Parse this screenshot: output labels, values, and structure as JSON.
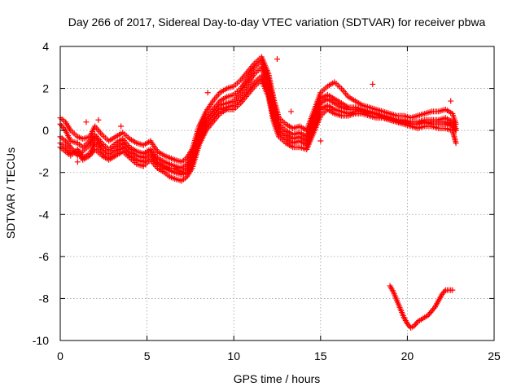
{
  "chart_data": {
    "type": "scatter",
    "title": "Day 266 of 2017, Sidereal Day-to-day VTEC variation (SDTVAR) for receiver pbwa",
    "xlabel": "GPS time / hours",
    "ylabel": "SDTVAR / TECUs",
    "xlim": [
      0,
      25
    ],
    "ylim": [
      -10,
      4
    ],
    "xticks": [
      0,
      5,
      10,
      15,
      20,
      25
    ],
    "xtick_labels": [
      "0",
      "5",
      "10",
      "15",
      "20",
      "25"
    ],
    "yticks": [
      -10,
      -8,
      -6,
      -4,
      -2,
      0,
      2,
      4
    ],
    "ytick_labels": [
      "-10",
      "-8",
      "-6",
      "-4",
      "-2",
      "0",
      "2",
      "4"
    ],
    "grid": true,
    "marker": "plus",
    "series": [
      {
        "name": "pbwa",
        "color": "#ff0000",
        "tracks": [
          {
            "x": [
              0,
              0.3,
              0.6,
              1.0,
              1.3,
              1.7,
              2.0,
              2.4,
              2.8,
              3.2,
              3.6,
              4.0,
              4.4,
              4.8,
              5.2,
              5.6,
              6.0,
              6.3,
              6.6,
              7.0,
              7.3,
              7.6,
              8.0,
              8.4,
              8.8,
              9.2,
              9.6,
              10.0,
              10.4,
              10.8,
              11.2,
              11.6,
              12.0,
              12.3,
              12.6,
              13.0,
              13.4,
              13.8,
              14.2,
              14.6,
              15.0,
              15.4,
              15.8,
              16.2,
              16.6,
              17.0,
              17.4,
              17.8,
              18.2,
              18.6,
              19.0,
              19.4,
              19.8,
              20.2,
              20.6,
              21.0,
              21.4,
              21.8,
              22.2,
              22.6,
              22.8
            ],
            "y": [
              -0.8,
              -1.0,
              -1.2,
              -0.9,
              -1.3,
              -1.1,
              -0.6,
              -1.0,
              -1.3,
              -1.0,
              -0.8,
              -1.2,
              -1.4,
              -1.5,
              -1.2,
              -1.6,
              -1.8,
              -1.9,
              -2.0,
              -2.1,
              -2.0,
              -1.6,
              -0.5,
              0.2,
              0.6,
              1.0,
              1.1,
              1.2,
              1.5,
              1.9,
              2.3,
              2.6,
              1.8,
              0.6,
              -0.1,
              -0.4,
              -0.6,
              -0.5,
              -0.7,
              0.2,
              1.0,
              1.2,
              1.0,
              0.9,
              0.8,
              0.9,
              0.9,
              0.8,
              0.8,
              0.7,
              0.6,
              0.5,
              0.4,
              0.3,
              0.3,
              0.4,
              0.3,
              0.3,
              0.3,
              0.2,
              0.0
            ]
          },
          {
            "x": [
              0,
              0.3,
              0.6,
              1.0,
              1.3,
              1.7,
              2.0,
              2.4,
              2.8,
              3.2,
              3.6,
              4.0,
              4.4,
              4.8,
              5.2,
              5.6,
              6.0,
              6.3,
              6.6,
              7.0,
              7.3,
              7.6,
              8.0,
              8.4,
              8.8,
              9.2,
              9.6,
              10.0,
              10.4,
              10.8,
              11.2,
              11.6,
              12.0,
              12.3,
              12.6,
              13.0,
              13.4,
              13.8,
              14.2,
              14.6,
              15.0,
              15.4,
              15.8,
              16.2,
              16.6,
              17.0,
              17.4,
              17.8,
              18.2,
              18.6,
              19.0,
              19.4,
              19.8,
              20.2,
              20.6,
              21.0,
              21.4,
              21.8,
              22.2,
              22.6,
              22.8
            ],
            "y": [
              0.3,
              0.0,
              -0.5,
              -0.6,
              -0.8,
              -0.5,
              -0.2,
              -0.6,
              -0.9,
              -0.6,
              -0.4,
              -0.8,
              -1.0,
              -1.1,
              -0.9,
              -1.3,
              -1.5,
              -1.6,
              -1.7,
              -1.8,
              -1.6,
              -1.2,
              -0.1,
              0.6,
              1.0,
              1.4,
              1.6,
              1.7,
              2.0,
              2.5,
              3.0,
              3.3,
              2.4,
              1.2,
              0.3,
              0.0,
              -0.2,
              -0.1,
              -0.3,
              0.6,
              1.5,
              1.7,
              1.5,
              1.3,
              1.1,
              1.1,
              1.0,
              0.9,
              0.8,
              0.7,
              0.6,
              0.5,
              0.5,
              0.4,
              0.4,
              0.5,
              0.5,
              0.5,
              0.6,
              0.4,
              0.1
            ]
          },
          {
            "x": [
              0,
              0.3,
              0.6,
              1.0,
              1.3,
              1.7,
              2.0,
              2.4,
              2.8,
              3.2,
              3.6,
              4.0,
              4.4,
              4.8,
              5.2,
              5.6,
              6.0,
              6.3,
              6.6,
              7.0,
              7.3,
              7.6,
              8.0,
              8.4,
              8.8,
              9.2,
              9.6,
              10.0,
              10.4,
              10.8,
              11.2,
              11.6,
              12.0,
              12.3,
              12.6,
              13.0,
              13.4,
              13.8,
              14.2,
              14.6,
              15.0,
              15.4,
              15.8,
              16.2,
              16.6,
              17.0,
              17.4,
              17.8,
              18.2,
              18.6,
              19.0,
              19.4,
              19.8,
              20.2,
              20.6,
              21.0,
              21.4,
              21.8,
              22.2,
              22.6,
              22.8
            ],
            "y": [
              -0.3,
              -0.5,
              -0.8,
              -1.2,
              -1.0,
              -0.7,
              -0.3,
              -0.8,
              -1.1,
              -0.8,
              -0.6,
              -1.0,
              -1.2,
              -1.3,
              -1.0,
              -1.5,
              -1.7,
              -1.8,
              -1.8,
              -2.0,
              -1.8,
              -1.4,
              -0.3,
              0.4,
              0.8,
              1.2,
              1.3,
              1.4,
              1.8,
              2.2,
              2.7,
              3.0,
              2.1,
              0.9,
              0.1,
              -0.2,
              -0.4,
              -0.3,
              -0.5,
              0.4,
              1.3,
              1.5,
              1.3,
              1.1,
              1.0,
              1.0,
              0.9,
              0.8,
              0.8,
              0.6,
              0.5,
              0.4,
              0.4,
              0.3,
              0.3,
              0.4,
              0.4,
              0.4,
              0.4,
              0.3,
              0.0
            ]
          },
          {
            "x": [
              0,
              0.3,
              0.6,
              1.0,
              1.3,
              1.7,
              2.0,
              2.4,
              2.8,
              3.2,
              3.6,
              4.0,
              4.4,
              4.8,
              5.2,
              5.6,
              6.0,
              6.3,
              6.6,
              7.0,
              7.3,
              7.6,
              8.0,
              8.4,
              8.8,
              9.2,
              9.6,
              10.0,
              10.4,
              10.8,
              11.2,
              11.6,
              12.0,
              12.3,
              12.6,
              13.0,
              13.4,
              13.8,
              14.2,
              14.6,
              15.0,
              15.4,
              15.8,
              16.2,
              16.6,
              17.0,
              17.4,
              17.8,
              18.2,
              18.6,
              19.0,
              19.4,
              19.8,
              20.2,
              20.6,
              21.0,
              21.4,
              21.8,
              22.2,
              22.6,
              22.8
            ],
            "y": [
              -0.6,
              -0.8,
              -1.1,
              -1.0,
              -1.4,
              -1.2,
              -0.9,
              -1.2,
              -1.4,
              -1.2,
              -1.0,
              -1.3,
              -1.6,
              -1.7,
              -1.4,
              -1.8,
              -2.0,
              -2.2,
              -2.3,
              -2.4,
              -2.2,
              -1.8,
              -0.7,
              0.0,
              0.4,
              0.8,
              1.0,
              1.0,
              1.3,
              1.7,
              2.1,
              2.4,
              1.6,
              0.4,
              -0.3,
              -0.6,
              -0.8,
              -0.8,
              -0.9,
              -0.1,
              0.7,
              1.0,
              0.8,
              0.7,
              0.7,
              0.8,
              0.8,
              0.7,
              0.6,
              0.6,
              0.5,
              0.4,
              0.3,
              0.2,
              0.1,
              0.2,
              0.2,
              0.1,
              0.1,
              0.0,
              -0.6
            ]
          },
          {
            "x": [
              0,
              0.3,
              0.6,
              1.0,
              1.3,
              1.7,
              2.0,
              2.4,
              2.8,
              3.2,
              3.6,
              4.0,
              4.4,
              4.8,
              5.2,
              5.6,
              6.0,
              6.3,
              6.6,
              7.0,
              7.3,
              7.6,
              8.0,
              8.4,
              8.8,
              9.2,
              9.6,
              10.0,
              10.4,
              10.8,
              11.2,
              11.6,
              12.0,
              12.3,
              12.6,
              13.0,
              13.4,
              13.8,
              14.2,
              14.6,
              15.0,
              15.4,
              15.8,
              16.2,
              16.6,
              17.0,
              17.4,
              17.8,
              18.2,
              18.6,
              19.0,
              19.4,
              19.8,
              20.2,
              20.6,
              21.0,
              21.4,
              21.8,
              22.2,
              22.6,
              22.8
            ],
            "y": [
              0.6,
              0.4,
              0.0,
              -0.3,
              -0.4,
              -0.3,
              0.2,
              -0.2,
              -0.5,
              -0.3,
              -0.1,
              -0.4,
              -0.6,
              -0.7,
              -0.5,
              -1.0,
              -1.2,
              -1.3,
              -1.4,
              -1.5,
              -1.3,
              -0.9,
              0.2,
              0.9,
              1.4,
              1.8,
              2.0,
              2.1,
              2.4,
              2.8,
              3.2,
              3.5,
              2.7,
              1.5,
              0.6,
              0.3,
              0.1,
              0.2,
              0.0,
              0.9,
              1.8,
              2.1,
              2.3,
              2.0,
              1.6,
              1.4,
              1.2,
              1.1,
              1.0,
              0.9,
              0.8,
              0.7,
              0.7,
              0.6,
              0.7,
              0.8,
              0.9,
              0.9,
              1.0,
              0.8,
              0.3
            ]
          },
          {
            "x": [
              19.0,
              19.2,
              19.4,
              19.6,
              19.8,
              20.0,
              20.2,
              20.4,
              20.6,
              20.8,
              21.0,
              21.2,
              21.4,
              21.6,
              21.8,
              22.0,
              22.2,
              22.4,
              22.6
            ],
            "y": [
              -7.4,
              -7.7,
              -8.1,
              -8.5,
              -8.9,
              -9.2,
              -9.4,
              -9.3,
              -9.1,
              -9.0,
              -8.9,
              -8.8,
              -8.6,
              -8.4,
              -8.1,
              -7.8,
              -7.6,
              -7.6,
              -7.6
            ]
          },
          {
            "x": [
              1.0,
              1.5,
              2.2,
              3.5,
              8.5,
              12.5,
              13.3,
              15.0,
              18.0,
              22.5
            ],
            "y": [
              -1.5,
              0.4,
              0.5,
              0.2,
              1.8,
              3.4,
              0.9,
              -0.5,
              2.2,
              1.4
            ]
          }
        ]
      }
    ]
  }
}
